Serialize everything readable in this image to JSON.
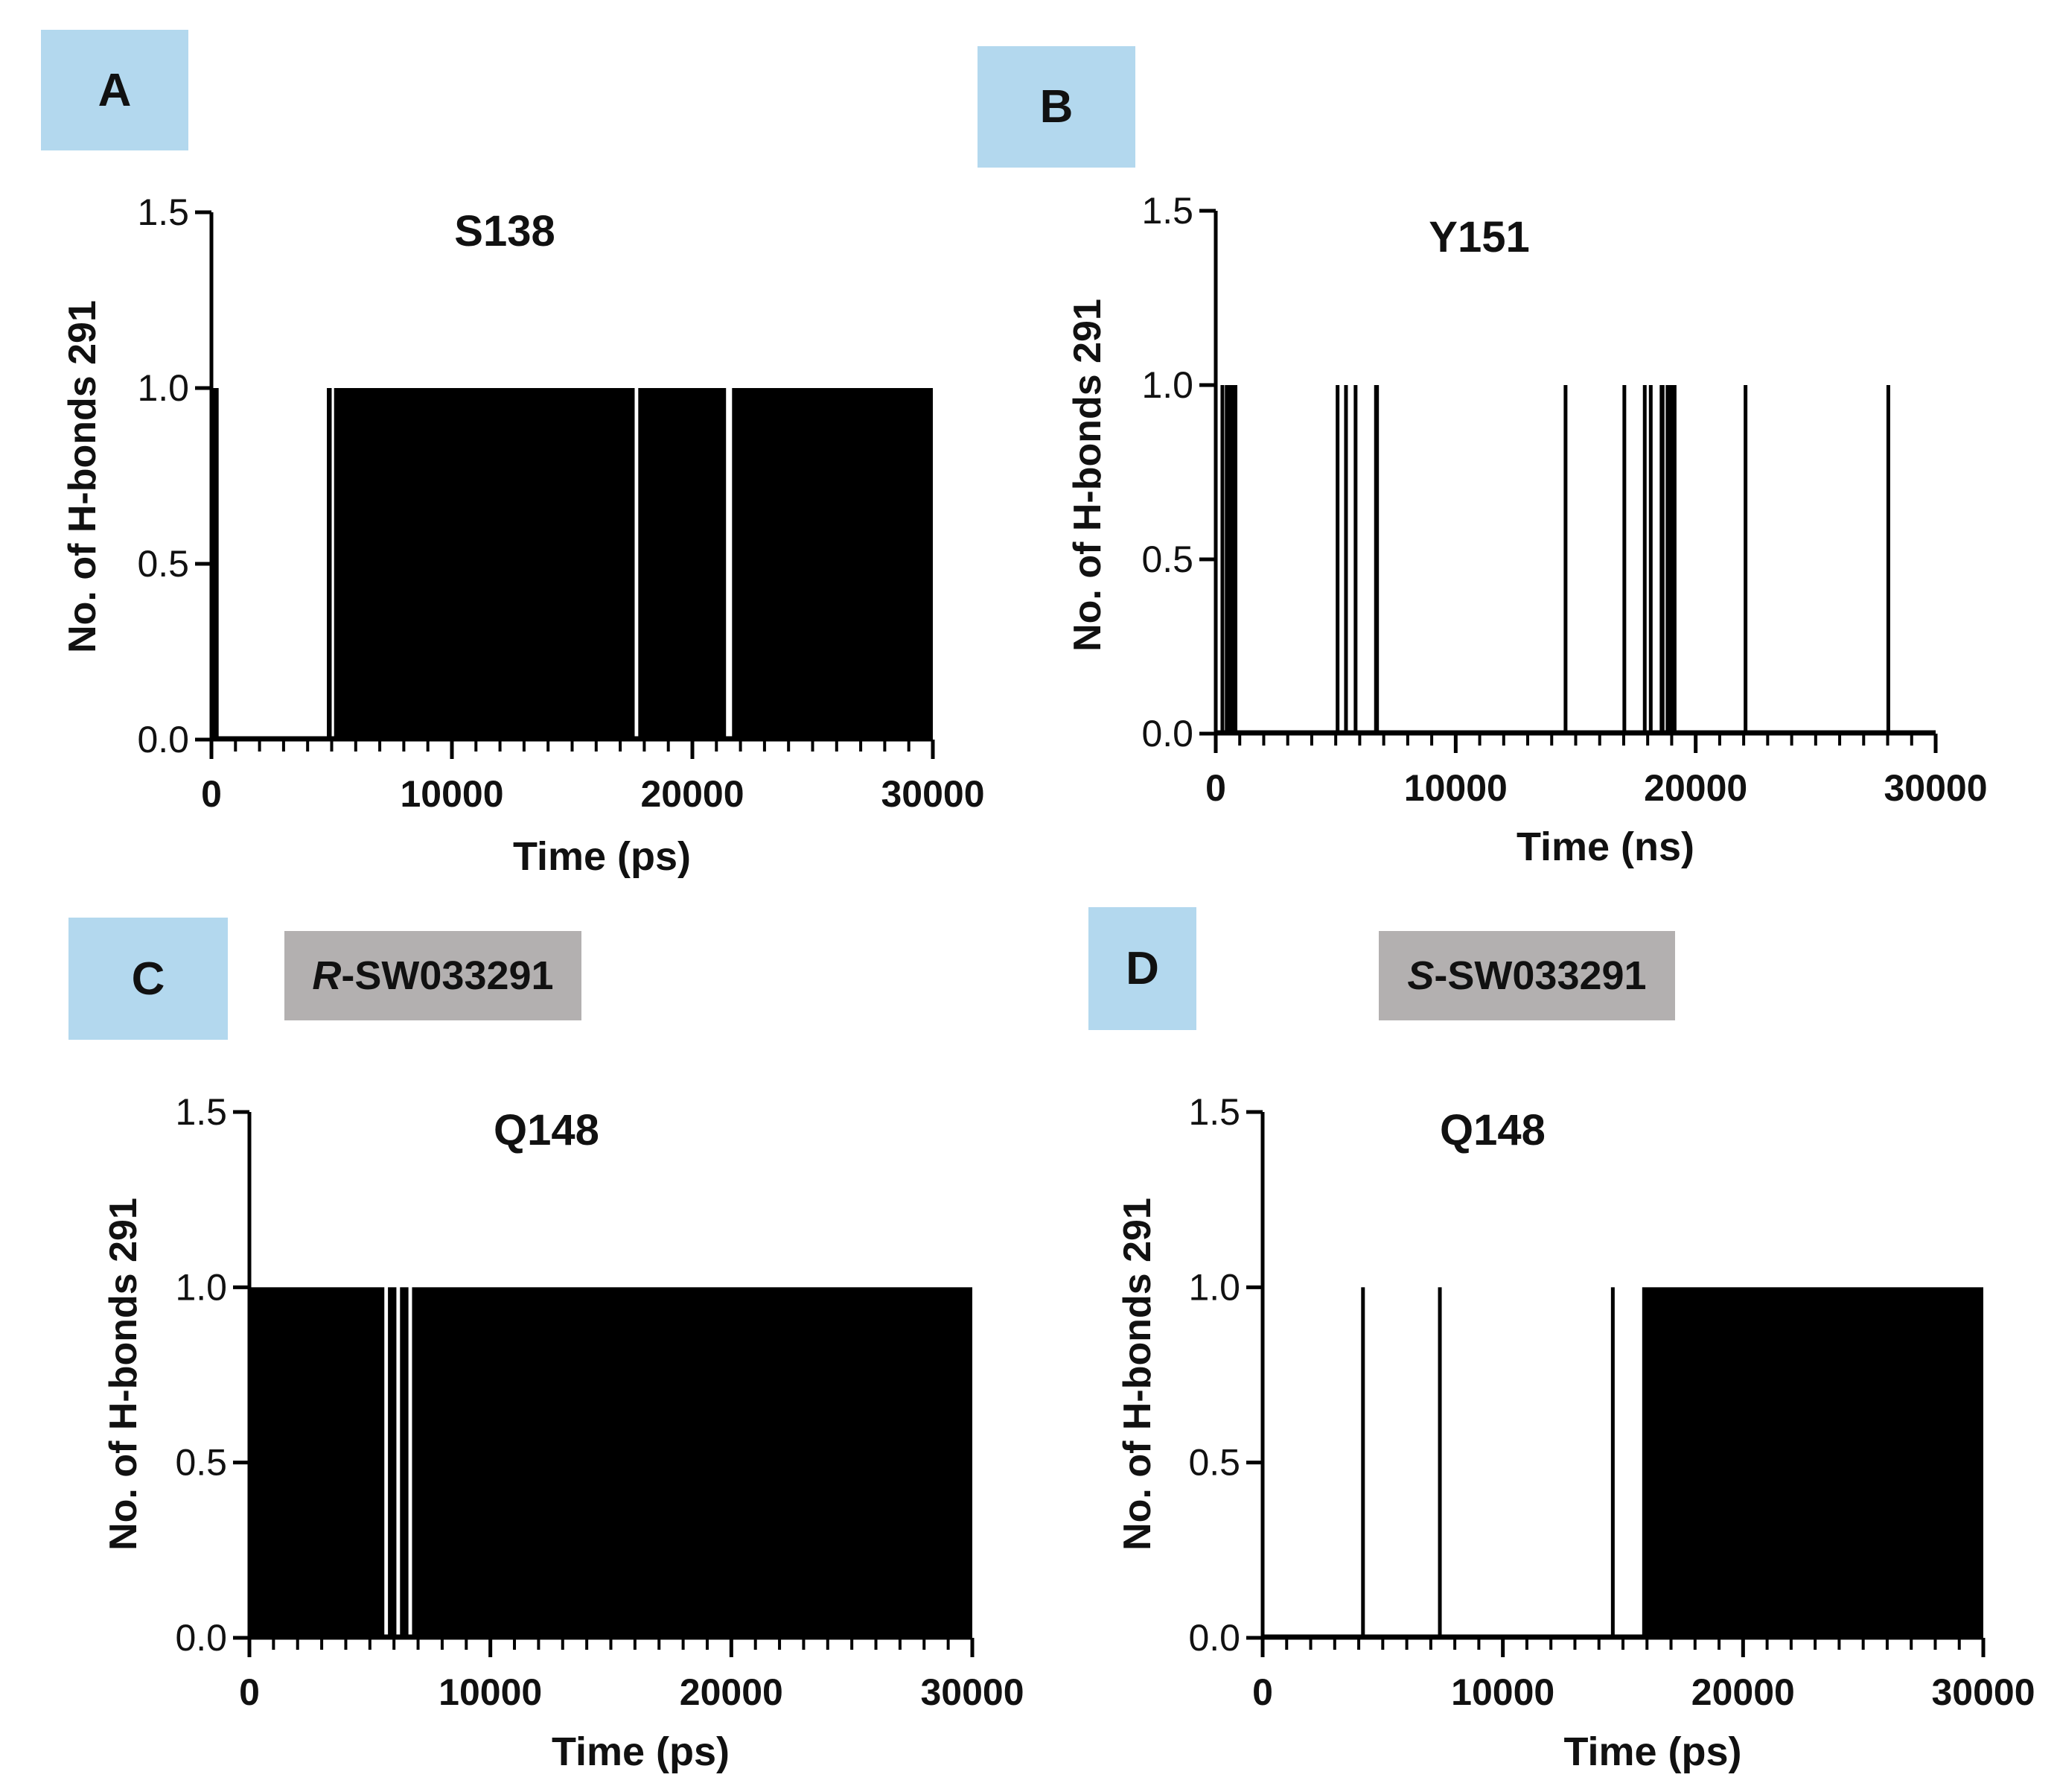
{
  "panels": {
    "A": {
      "label": "A"
    },
    "B": {
      "label": "B"
    },
    "C": {
      "label": "C",
      "compound_prefix": "R",
      "compound_suffix": "-SW033291"
    },
    "D": {
      "label": "D",
      "compound_prefix": "S",
      "compound_suffix": "-SW033291"
    }
  },
  "chart_data": [
    {
      "id": "A",
      "type": "bar",
      "title": "S138",
      "xlabel": "Time (ps)",
      "ylabel": "No. of H-bonds 291",
      "xlim": [
        0,
        30000
      ],
      "ylim": [
        0,
        1.5
      ],
      "xticks": [
        "0",
        "10000",
        "20000",
        "30000"
      ],
      "yticks": [
        "0.0",
        "0.5",
        "1.0",
        "1.5"
      ],
      "segments": [
        [
          0,
          300
        ],
        [
          4800,
          5000
        ],
        [
          5100,
          17600
        ],
        [
          17750,
          21400
        ],
        [
          21650,
          30000
        ]
      ]
    },
    {
      "id": "B",
      "type": "bar",
      "title": "Y151",
      "xlabel": "Time (ns)",
      "ylabel": "No. of H-bonds 291",
      "xlim": [
        0,
        30000
      ],
      "ylim": [
        0,
        1.5
      ],
      "xticks": [
        "0",
        "10000",
        "20000",
        "30000"
      ],
      "yticks": [
        "0.0",
        "0.5",
        "1.0",
        "1.5"
      ],
      "segments": [
        [
          200,
          320
        ],
        [
          380,
          900
        ],
        [
          5000,
          5100
        ],
        [
          5350,
          5450
        ],
        [
          5750,
          5850
        ],
        [
          6600,
          6800
        ],
        [
          14500,
          14650
        ],
        [
          16950,
          17050
        ],
        [
          17800,
          17900
        ],
        [
          18050,
          18150
        ],
        [
          18500,
          18700
        ],
        [
          18750,
          19200
        ],
        [
          22000,
          22100
        ],
        [
          27950,
          28050
        ]
      ]
    },
    {
      "id": "C",
      "type": "bar",
      "title": "Q148",
      "xlabel": "Time (ps)",
      "ylabel": "No. of H-bonds 291",
      "xlim": [
        0,
        30000
      ],
      "ylim": [
        0,
        1.5
      ],
      "xticks": [
        "0",
        "10000",
        "20000",
        "30000"
      ],
      "yticks": [
        "0.0",
        "0.5",
        "1.0",
        "1.5"
      ],
      "segments": [
        [
          0,
          5600
        ],
        [
          5750,
          6100
        ],
        [
          6250,
          6600
        ],
        [
          6750,
          30000
        ]
      ]
    },
    {
      "id": "D",
      "type": "bar",
      "title": "Q148",
      "xlabel": "Time (ps)",
      "ylabel": "No. of H-bonds 291",
      "xlim": [
        0,
        30000
      ],
      "ylim": [
        0,
        1.5
      ],
      "xticks": [
        "0",
        "10000",
        "20000",
        "30000"
      ],
      "yticks": [
        "0.0",
        "0.5",
        "1.0",
        "1.5"
      ],
      "segments": [
        [
          4100,
          4250
        ],
        [
          7300,
          7450
        ],
        [
          14500,
          14650
        ],
        [
          15800,
          30000
        ]
      ]
    }
  ]
}
